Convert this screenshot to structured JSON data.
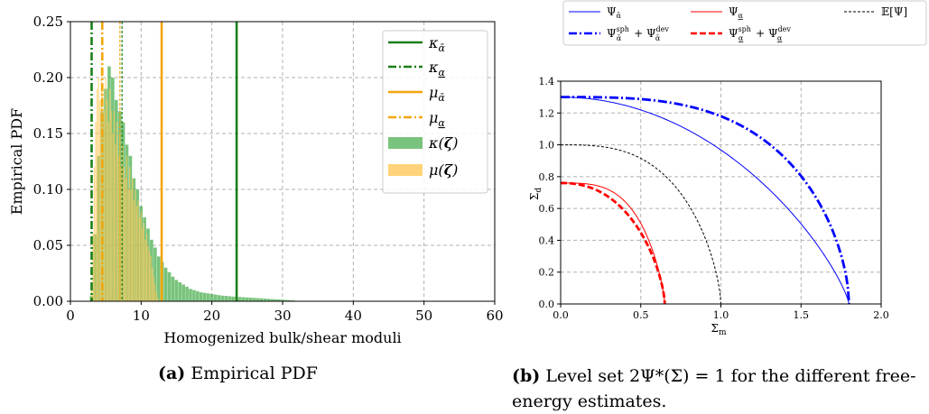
{
  "captions": {
    "a_tag": "(a)",
    "a_text": "Empirical PDF",
    "b_tag": "(b)",
    "b_line1": "Level set 2Ψ*(Σ) = 1 for the different free-",
    "b_line2": "energy estimates."
  },
  "chart_data": [
    {
      "type": "bar",
      "id": "empirical-pdf",
      "xlabel": "Homogenized bulk/shear moduli",
      "ylabel": "Empirical PDF",
      "xlim": [
        0,
        60
      ],
      "ylim": [
        0,
        0.25
      ],
      "xticks": [
        "0",
        "10",
        "20",
        "30",
        "40",
        "50",
        "60"
      ],
      "yticks": [
        "0.00",
        "0.05",
        "0.10",
        "0.15",
        "0.20",
        "0.25"
      ],
      "grid": true,
      "legend_position": "top-right",
      "legend": [
        "κ_ᾱ",
        "κ_α",
        "μ_ᾱ",
        "μ_α",
        "κ(ζ)",
        "μ(ζ)"
      ],
      "vlines": [
        {
          "name": "kappa_upper",
          "x": 23.5,
          "style": "solid",
          "color": "#1a801a"
        },
        {
          "name": "kappa_lower",
          "x": 3.0,
          "style": "dashdot",
          "color": "#1a801a"
        },
        {
          "name": "kappa_mean",
          "x": 7.3,
          "style": "dashed-thin",
          "color": "#1a801a"
        },
        {
          "name": "mu_upper",
          "x": 12.9,
          "style": "solid",
          "color": "#f5a60a"
        },
        {
          "name": "mu_lower",
          "x": 4.5,
          "style": "dashdot",
          "color": "#f5a60a"
        },
        {
          "name": "mu_mean",
          "x": 7.0,
          "style": "dashed-thin",
          "color": "#f5a60a"
        }
      ],
      "series": [
        {
          "name": "κ(ζ)",
          "color": "#4caf50",
          "bin_start": 2.75,
          "bin_width": 0.5,
          "values": [
            0.005,
            0.06,
            0.13,
            0.17,
            0.19,
            0.21,
            0.2,
            0.18,
            0.17,
            0.16,
            0.14,
            0.13,
            0.11,
            0.1,
            0.085,
            0.075,
            0.065,
            0.055,
            0.048,
            0.04,
            0.035,
            0.03,
            0.026,
            0.022,
            0.019,
            0.017,
            0.015,
            0.013,
            0.011,
            0.01,
            0.009,
            0.008,
            0.0075,
            0.007,
            0.0065,
            0.006,
            0.0055,
            0.005,
            0.0048,
            0.0045,
            0.0042,
            0.004,
            0.0038,
            0.0036,
            0.0034,
            0.0032,
            0.003,
            0.0028,
            0.0026,
            0.0024,
            0.0022,
            0.002,
            0.0018,
            0.0016,
            0.0014,
            0.0012,
            0.001,
            0.0008
          ]
        },
        {
          "name": "μ(ζ)",
          "color": "#ffc857",
          "bin_start": 2.9,
          "bin_width": 0.2,
          "values": [
            0.01,
            0.06,
            0.12,
            0.16,
            0.19,
            0.2,
            0.18,
            0.21,
            0.19,
            0.17,
            0.2,
            0.18,
            0.16,
            0.19,
            0.17,
            0.15,
            0.17,
            0.14,
            0.16,
            0.13,
            0.15,
            0.12,
            0.14,
            0.12,
            0.11,
            0.13,
            0.1,
            0.12,
            0.1,
            0.11,
            0.09,
            0.1,
            0.085,
            0.09,
            0.075,
            0.08,
            0.065,
            0.07,
            0.055,
            0.06,
            0.05,
            0.045,
            0.04,
            0.03,
            0.022,
            0.015,
            0.008,
            0.003
          ]
        }
      ]
    },
    {
      "type": "line",
      "id": "level-set",
      "xlabel": "Σm",
      "ylabel": "Σd",
      "xlim": [
        0,
        2.0
      ],
      "ylim": [
        0,
        1.4
      ],
      "xticks": [
        "0.0",
        "0.5",
        "1.0",
        "1.5",
        "2.0"
      ],
      "yticks": [
        "0.0",
        "0.2",
        "0.4",
        "0.6",
        "0.8",
        "1.0",
        "1.2",
        "1.4"
      ],
      "grid": true,
      "legend_position": "top, outside",
      "series": [
        {
          "name": "Ψ_ᾱ",
          "color": "#0000ff",
          "style": "solid-thin",
          "a": 1.8,
          "b": 1.3,
          "p": 2.0,
          "q": 1.25
        },
        {
          "name": "Ψ_α",
          "color": "#ff0000",
          "style": "solid-thin",
          "a": 0.65,
          "b": 0.76,
          "p": 3.4,
          "q": 1.3
        },
        {
          "name": "E[Ψ]",
          "color": "#000000",
          "style": "dashed-thin",
          "a": 1.0,
          "b": 1.0,
          "p": 3.0,
          "q": 1.5
        },
        {
          "name": "Ψ_ᾱ^sph + Ψ_ᾱ^dev",
          "color": "#0000ff",
          "style": "dashdot-thick",
          "a": 1.8,
          "b": 1.3,
          "p": 3.2,
          "q": 1.7
        },
        {
          "name": "Ψ_α^sph + Ψ_α^dev",
          "color": "#ff0000",
          "style": "dashed-thick",
          "a": 0.65,
          "b": 0.76,
          "p": 2.3,
          "q": 1.5
        }
      ]
    }
  ]
}
